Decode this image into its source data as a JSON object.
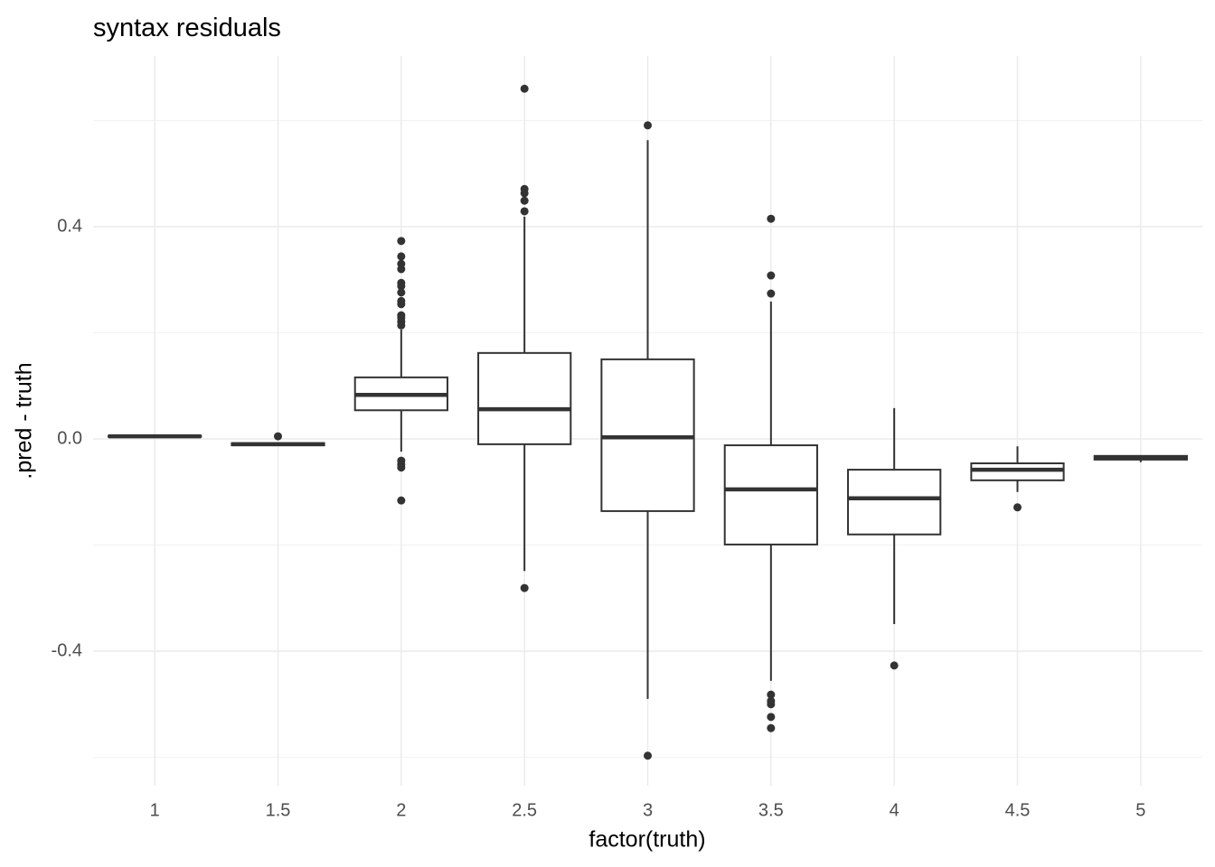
{
  "chart_data": {
    "type": "boxplot",
    "title": "syntax residuals",
    "x_label": "factor(truth)",
    "y_label": ".pred - truth",
    "categories": [
      "1",
      "1.5",
      "2",
      "2.5",
      "3",
      "3.5",
      "4",
      "4.5",
      "5"
    ],
    "boxes": [
      {
        "min": 0.004,
        "q1": 0.004,
        "median": 0.005,
        "q3": 0.006,
        "max": 0.006,
        "outliers": []
      },
      {
        "min": -0.012,
        "q1": -0.012,
        "median": -0.01,
        "q3": -0.008,
        "max": -0.008,
        "outliers": [
          0.005
        ]
      },
      {
        "min": -0.024,
        "q1": 0.054,
        "median": 0.083,
        "q3": 0.116,
        "max": 0.206,
        "outliers": [
          0.373,
          0.344,
          0.33,
          0.32,
          0.294,
          0.288,
          0.276,
          0.26,
          0.254,
          0.233,
          0.228,
          0.221,
          0.214,
          -0.041,
          -0.048,
          -0.054,
          -0.116
        ]
      },
      {
        "min": -0.249,
        "q1": -0.01,
        "median": 0.056,
        "q3": 0.162,
        "max": 0.419,
        "outliers": [
          0.66,
          0.471,
          0.463,
          0.449,
          0.429,
          -0.281
        ]
      },
      {
        "min": -0.49,
        "q1": -0.136,
        "median": 0.003,
        "q3": 0.15,
        "max": 0.563,
        "outliers": [
          0.591,
          -0.597
        ]
      },
      {
        "min": -0.456,
        "q1": -0.199,
        "median": -0.095,
        "q3": -0.012,
        "max": 0.259,
        "outliers": [
          0.415,
          0.308,
          0.274,
          -0.482,
          -0.494,
          -0.5,
          -0.524,
          -0.545
        ]
      },
      {
        "min": -0.349,
        "q1": -0.18,
        "median": -0.112,
        "q3": -0.058,
        "max": 0.058,
        "outliers": [
          -0.427
        ]
      },
      {
        "min": -0.1,
        "q1": -0.078,
        "median": -0.058,
        "q3": -0.046,
        "max": -0.014,
        "outliers": [
          -0.129
        ]
      },
      {
        "min": -0.044,
        "q1": -0.039,
        "median": -0.036,
        "q3": -0.032,
        "max": -0.031,
        "outliers": []
      }
    ],
    "color": "#333333",
    "ylim": [
      -0.6536,
      0.7217
    ],
    "yticks": [
      -0.4,
      {
        "value": 0,
        "label": "0.0"
      },
      0.4
    ],
    "minor_yticks": [
      -0.6,
      -0.2,
      0.2,
      0.6
    ],
    "grid": true
  }
}
